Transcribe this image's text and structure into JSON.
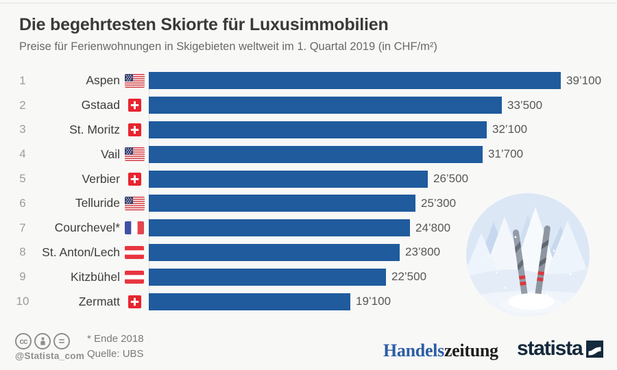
{
  "header": {
    "title": "Die begehrtesten Skiorte für Luxusimmobilien",
    "subtitle": "Preise für Ferienwohnungen in Skigebieten weltweit im 1. Quartal 2019 (in CHF/m²)"
  },
  "chart_data": {
    "type": "bar",
    "orientation": "horizontal",
    "title": "Die begehrtesten Skiorte für Luxusimmobilien",
    "subtitle": "Preise für Ferienwohnungen in Skigebieten weltweit im 1. Quartal 2019 (in CHF/m²)",
    "unit": "CHF/m²",
    "xlim": [
      0,
      39100
    ],
    "bar_color": "#1f5b9d",
    "grid": false,
    "ranks": [
      "1",
      "2",
      "3",
      "4",
      "5",
      "6",
      "7",
      "8",
      "9",
      "10"
    ],
    "categories": [
      "Aspen",
      "Gstaad",
      "St. Moritz",
      "Vail",
      "Verbier",
      "Telluride",
      "Courchevel*",
      "St. Anton/Lech",
      "Kitzbühel",
      "Zermatt"
    ],
    "countries": [
      "us",
      "ch",
      "ch",
      "us",
      "ch",
      "us",
      "fr",
      "at",
      "at",
      "ch"
    ],
    "values": [
      39100,
      33500,
      32100,
      31700,
      26500,
      25300,
      24800,
      23800,
      22500,
      19100
    ],
    "value_labels": [
      "39’100",
      "33’500",
      "32’100",
      "31’700",
      "26’500",
      "25’300",
      "24’800",
      "23’800",
      "22’500",
      "19’100"
    ]
  },
  "footer": {
    "footnote": "* Ende 2018",
    "source": "Quelle: UBS",
    "handle": "@Statista_com",
    "cc_icons": [
      "cc",
      "attribution",
      "no-derivatives"
    ]
  },
  "branding": {
    "handelszeitung_part1": "Handels",
    "handelszeitung_part2": "zeitung",
    "statista_label": "statista"
  },
  "colors": {
    "background": "#f8f8f7",
    "bar": "#1f5b9d",
    "title": "#3a3a39",
    "subtitle": "#696968",
    "rank": "#9c9c9b",
    "value": "#565655",
    "hz_blue": "#2b5da5",
    "statista_navy": "#15293c"
  }
}
